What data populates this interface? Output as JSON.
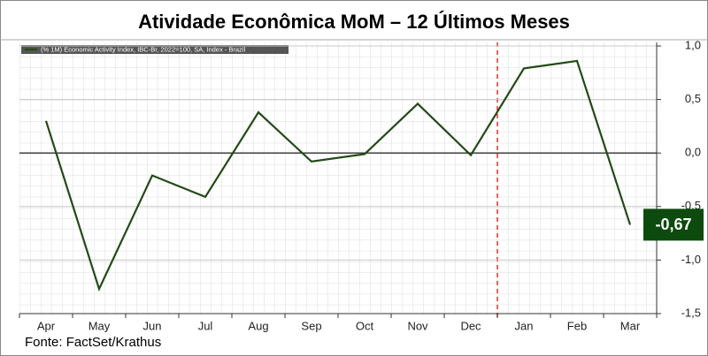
{
  "chart_data": {
    "type": "line",
    "title": "Atividade Econômica MoM – 12 Últimos Meses",
    "legend": "(% 1M) Economic Activity Index, IBC-Br, 2022=100, SA, Index - Brazil",
    "source": "Fonte: FactSet/Krathus",
    "categories": [
      "Apr",
      "May",
      "Jun",
      "Jul",
      "Aug",
      "Sep",
      "Oct",
      "Nov",
      "Dec",
      "Jan",
      "Feb",
      "Mar"
    ],
    "series": [
      {
        "name": "(% 1M) Economic Activity Index, IBC-Br, 2022=100, SA, Index - Brazil",
        "color": "#234a17",
        "values": [
          0.3,
          -1.27,
          -0.21,
          -0.41,
          0.38,
          -0.08,
          -0.01,
          0.46,
          -0.02,
          0.79,
          0.86,
          -0.67
        ],
        "value_labels": [
          null,
          null,
          null,
          null,
          null,
          null,
          null,
          null,
          null,
          null,
          null,
          "-0,67"
        ]
      }
    ],
    "ylim": [
      -1.5,
      1.0
    ],
    "yticks": [
      {
        "value": 1.0,
        "label": "1,0"
      },
      {
        "value": 0.5,
        "label": "0,5"
      },
      {
        "value": 0,
        "label": "0,0"
      },
      {
        "value": -0.5,
        "label": "-0,5"
      },
      {
        "value": -1.0,
        "label": "-1,0"
      },
      {
        "value": -1.5,
        "label": "-1,5"
      }
    ],
    "grid": true
  }
}
